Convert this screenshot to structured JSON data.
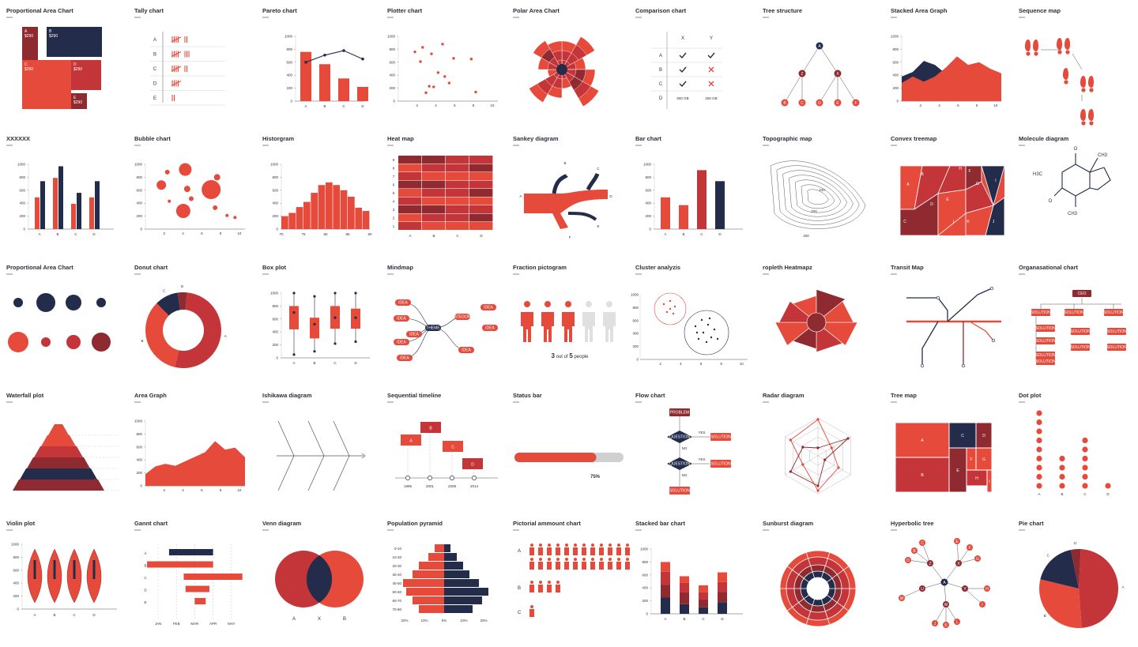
{
  "colors": {
    "red": "#e64a3b",
    "mid": "#c4353a",
    "dark": "#8e2a30",
    "navy": "#232d4b",
    "grey": "#cfd0d2",
    "axis": "#555"
  },
  "chart_data": [
    {
      "key": "proportional_area",
      "type": "treemap",
      "title": "Proportional Area Chart",
      "cells": [
        {
          "label": "A",
          "value": "$290"
        },
        {
          "label": "B",
          "value": "$290"
        },
        {
          "label": "C",
          "value": "$290"
        },
        {
          "label": "D",
          "value": "$290"
        },
        {
          "label": "E",
          "value": "$290"
        }
      ]
    },
    {
      "key": "tally",
      "type": "table",
      "title": "Tally chart",
      "categories": [
        "A",
        "B",
        "C",
        "D",
        "E"
      ],
      "values": [
        7,
        8,
        7,
        5,
        2
      ]
    },
    {
      "key": "pareto",
      "type": "bar",
      "title": "Pareto chart",
      "categories": [
        "A",
        "B",
        "C",
        "D"
      ],
      "values": [
        760,
        570,
        350,
        220
      ],
      "line": [
        600,
        710,
        780,
        650
      ],
      "yticks": [
        "1000",
        "800",
        "600",
        "400",
        "200",
        "0"
      ],
      "ylim": [
        0,
        1000
      ]
    },
    {
      "key": "plotter",
      "type": "scatter",
      "title": "Plotter chart",
      "xticks": [
        "2",
        "4",
        "6",
        "8",
        "10"
      ],
      "yticks": [
        "1000",
        "800",
        "600",
        "400",
        "200",
        "0"
      ],
      "x": [
        2.5,
        3,
        3.2,
        4,
        3.8,
        5,
        4.6,
        6,
        5.6,
        3.5,
        7.6,
        8,
        5.2,
        4.2
      ],
      "y": [
        760,
        610,
        830,
        730,
        230,
        880,
        440,
        660,
        280,
        130,
        650,
        140,
        380,
        220
      ],
      "xlim": [
        1,
        10
      ],
      "ylim": [
        0,
        1000
      ]
    },
    {
      "key": "polar_area",
      "type": "pie",
      "title": "Polar Area Chart",
      "values": [
        6,
        8,
        5,
        7,
        9,
        4,
        6,
        8,
        3,
        5,
        7,
        6
      ]
    },
    {
      "key": "comparison",
      "type": "table",
      "title": "Comparison chart",
      "columns": [
        "X",
        "Y"
      ],
      "rows": [
        "A",
        "B",
        "C",
        "D"
      ],
      "cells": [
        [
          "check",
          "check"
        ],
        [
          "check",
          "cross"
        ],
        [
          "check",
          "cross"
        ],
        [
          "500 GB",
          "250 GB"
        ]
      ]
    },
    {
      "key": "tree_structure",
      "type": "tree",
      "title": "Tree structure",
      "root": "A",
      "level1": [
        "Z",
        "X"
      ],
      "leaves": [
        "B",
        "C",
        "D",
        "E",
        "F"
      ]
    },
    {
      "key": "stacked_area",
      "type": "area",
      "title": "Stacked Area Graph",
      "x": [
        1,
        2,
        3,
        4,
        5,
        6,
        7,
        8,
        9,
        10
      ],
      "series": [
        {
          "values": [
            380,
            450,
            620,
            560,
            420,
            390,
            420,
            380,
            300,
            260
          ]
        },
        {
          "values": [
            280,
            380,
            300,
            380,
            520,
            690,
            560,
            600,
            500,
            430
          ]
        }
      ],
      "xticks": [
        "2",
        "4",
        "6",
        "8",
        "10"
      ],
      "yticks": [
        "1000",
        "800",
        "600",
        "400",
        "200",
        "0"
      ],
      "ylim": [
        0,
        1000
      ]
    },
    {
      "key": "sequence_map",
      "type": "other",
      "title": "Sequence map"
    },
    {
      "key": "xxxxxx",
      "type": "bar",
      "title": "XXXXXX",
      "categories": [
        "A",
        "B",
        "C",
        "D"
      ],
      "series": [
        {
          "values": [
            490,
            790,
            390,
            490
          ]
        },
        {
          "values": [
            740,
            970,
            560,
            740
          ]
        }
      ],
      "yticks": [
        "1000",
        "800",
        "600",
        "400",
        "200",
        "0"
      ],
      "ylim": [
        0,
        1000
      ]
    },
    {
      "key": "bubble",
      "type": "scatter",
      "title": "Bubble chart",
      "xticks": [
        "2",
        "4",
        "6",
        "8",
        "10"
      ],
      "yticks": [
        "1000",
        "800",
        "600",
        "400",
        "200",
        "0"
      ],
      "x": [
        1.6,
        2.2,
        4,
        4.2,
        3.8,
        6.6,
        7.2,
        2.4,
        4.6,
        8.2,
        9,
        7
      ],
      "y": [
        680,
        880,
        920,
        620,
        280,
        610,
        800,
        430,
        470,
        210,
        180,
        330
      ],
      "r": [
        6,
        3,
        8,
        4,
        9,
        12,
        4,
        2,
        3,
        2,
        2,
        3
      ],
      "xlim": [
        0,
        10
      ],
      "ylim": [
        0,
        1000
      ]
    },
    {
      "key": "histogram",
      "type": "bar",
      "title": "Historgram",
      "values": [
        200,
        250,
        340,
        420,
        560,
        680,
        720,
        680,
        600,
        500,
        330,
        280
      ],
      "xticks": [
        "70",
        "75",
        "80",
        "85",
        "90"
      ],
      "yticks": [
        "1000",
        "800",
        "600",
        "400",
        "200",
        "0"
      ],
      "ylim": [
        0,
        1000
      ]
    },
    {
      "key": "heat_map",
      "type": "heatmap",
      "title": "Heat map",
      "categories": [
        "A",
        "B",
        "C",
        "D"
      ],
      "rows": [
        "9",
        "8",
        "7",
        "6",
        "5",
        "4",
        "3",
        "2",
        "1"
      ]
    },
    {
      "key": "sankey",
      "type": "other",
      "title": "Sankey diagram",
      "nodes": [
        "A",
        "B",
        "C",
        "D",
        "E",
        "F"
      ]
    },
    {
      "key": "bar",
      "type": "bar",
      "title": "Bar chart",
      "categories": [
        "A",
        "B",
        "C",
        "D"
      ],
      "values": [
        490,
        370,
        910,
        740
      ],
      "yticks": [
        "1000",
        "800",
        "600",
        "400",
        "200",
        "0"
      ],
      "ylim": [
        0,
        1000
      ]
    },
    {
      "key": "topographic",
      "type": "other",
      "title": "Topographic map",
      "labels": [
        "240",
        "220",
        "200"
      ]
    },
    {
      "key": "convex_treemap",
      "type": "other",
      "title": "Convex treemap",
      "labels": [
        "A",
        "B",
        "C",
        "D",
        "E",
        "F",
        "G",
        "H",
        "I",
        "J",
        "K",
        "L"
      ]
    },
    {
      "key": "molecule",
      "type": "other",
      "title": "Molecule diagram"
    },
    {
      "key": "proportional_area_2",
      "type": "other",
      "title": "Proportional Area Chart"
    },
    {
      "key": "donut",
      "type": "pie",
      "title": "Donut chart",
      "categories": [
        "A",
        "B",
        "C",
        "D"
      ],
      "values": [
        52,
        34,
        10,
        4
      ]
    },
    {
      "key": "box_plot",
      "type": "other",
      "title": "Box plot",
      "categories": [
        "A",
        "B",
        "C",
        "D"
      ],
      "boxes": [
        {
          "min": 50,
          "q1": 440,
          "med": 700,
          "q3": 800,
          "max": 1000
        },
        {
          "min": 100,
          "q1": 300,
          "med": 520,
          "q3": 620,
          "max": 950
        },
        {
          "min": 220,
          "q1": 450,
          "med": 620,
          "q3": 800,
          "max": 1000
        },
        {
          "min": 250,
          "q1": 450,
          "med": 620,
          "q3": 760,
          "max": 1000
        }
      ],
      "yticks": [
        "1000",
        "800",
        "600",
        "400",
        "200",
        "0"
      ],
      "ylim": [
        0,
        1000
      ]
    },
    {
      "key": "mindmap",
      "type": "other",
      "title": "Mindmap",
      "nodes": [
        "THEME",
        "CATEGORY",
        "IDEA"
      ]
    },
    {
      "key": "fraction_pictogram",
      "type": "other",
      "title": "Fraction pictogram",
      "filled": 3,
      "total": 5,
      "caption": "3 out of 5 people",
      "caption_parts": [
        "3",
        " out of ",
        "5",
        " people"
      ]
    },
    {
      "key": "cluster",
      "type": "scatter",
      "title": "Cluster analyzis",
      "xticks": [
        "2",
        "4",
        "6",
        "8",
        "10"
      ],
      "yticks": [
        "1000",
        "800",
        "600",
        "400",
        "200",
        "0"
      ],
      "xlim": [
        1,
        10
      ],
      "ylim": [
        0,
        1000
      ]
    },
    {
      "key": "choropleth",
      "type": "other",
      "title": " ropleth Heatmapz"
    },
    {
      "key": "transit",
      "type": "other",
      "title": "Transit Map"
    },
    {
      "key": "organisational",
      "type": "other",
      "title": "Organasational chart",
      "root": "CEO",
      "node": "SOLUTION"
    },
    {
      "key": "waterfall",
      "type": "other",
      "title": "Waterfall plot"
    },
    {
      "key": "area_graph",
      "type": "area",
      "title": "Area Graph",
      "x": [
        0,
        1,
        2,
        3,
        4,
        5,
        6,
        7,
        8,
        9,
        10
      ],
      "values": [
        180,
        300,
        340,
        310,
        380,
        450,
        520,
        690,
        560,
        590,
        440
      ],
      "xticks": [
        "2",
        "4",
        "6",
        "8",
        "10"
      ],
      "yticks": [
        "1000",
        "800",
        "600",
        "400",
        "200",
        "0"
      ],
      "ylim": [
        0,
        1000
      ]
    },
    {
      "key": "ishikawa",
      "type": "other",
      "title": "Ishikawa diagram"
    },
    {
      "key": "sequential_timeline",
      "type": "other",
      "title": "Sequential timeline",
      "events": [
        "A",
        "B",
        "C",
        "D"
      ],
      "years": [
        "1996",
        "2001",
        "2008",
        "2014"
      ]
    },
    {
      "key": "status_bar",
      "type": "other",
      "title": "Status bar",
      "value": 0.75,
      "label": "75%"
    },
    {
      "key": "flow_chart",
      "type": "other",
      "title": "Flow chart",
      "nodes": [
        "PROBLEM",
        "QUESTION",
        "SOLUTION"
      ],
      "yes": "YES",
      "no": "NO"
    },
    {
      "key": "radar",
      "type": "other",
      "title": "Radar diagram"
    },
    {
      "key": "tree_map",
      "type": "treemap",
      "title": "Tree map",
      "labels": [
        "A",
        "B",
        "C",
        "D",
        "E",
        "F",
        "G",
        "H",
        "I"
      ]
    },
    {
      "key": "dot_plot",
      "type": "other",
      "title": "Dot plot",
      "categories": [
        "A",
        "B",
        "C",
        "D"
      ],
      "values": [
        9,
        4,
        6,
        1
      ]
    },
    {
      "key": "violin",
      "type": "other",
      "title": "Violin plot",
      "categories": [
        "A",
        "B",
        "C",
        "D"
      ],
      "yticks": [
        "1000",
        "800",
        "600",
        "400",
        "200",
        "0"
      ]
    },
    {
      "key": "gantt",
      "type": "bar",
      "title": "Gannt chart",
      "categories": [
        "A",
        "B",
        "C",
        "D",
        "E"
      ],
      "months": [
        "JAN",
        "FEB",
        "MAR",
        "APR",
        "MAY"
      ],
      "tasks": [
        {
          "start": 0.6,
          "end": 3.0
        },
        {
          "start": -0.6,
          "end": 3.0
        },
        {
          "start": 1.4,
          "end": 4.6
        },
        {
          "start": 1.5,
          "end": 2.8
        },
        {
          "start": 2.0,
          "end": 2.6
        }
      ]
    },
    {
      "key": "venn",
      "type": "other",
      "title": "Venn diagram",
      "labels": [
        "A",
        "X",
        "B"
      ]
    },
    {
      "key": "population_pyramid",
      "type": "bar",
      "title": "Population pyramid",
      "ages": [
        "0-10",
        "10-20",
        "20-30",
        "30-40",
        "40-50",
        "50-60",
        "60-70",
        "70-80"
      ],
      "left": [
        3,
        5,
        8,
        10,
        13,
        12,
        10,
        8
      ],
      "right": [
        2,
        4,
        6,
        8,
        11,
        14,
        12,
        9
      ],
      "xticks": [
        "20%",
        "10%",
        "0%",
        "10%",
        "20%"
      ]
    },
    {
      "key": "pictorial_amount",
      "type": "other",
      "title": "Pictorial ammount chart",
      "rows": [
        "A",
        "B",
        "C"
      ],
      "counts": [
        24,
        4,
        1
      ]
    },
    {
      "key": "stacked_bar",
      "type": "bar",
      "title": "Stacked bar chart",
      "categories": [
        "A",
        "B",
        "C",
        "D"
      ],
      "series": [
        {
          "values": [
            250,
            150,
            100,
            180
          ]
        },
        {
          "values": [
            200,
            180,
            120,
            160
          ]
        },
        {
          "values": [
            200,
            150,
            110,
            150
          ]
        },
        {
          "values": [
            150,
            100,
            110,
            150
          ]
        }
      ],
      "yticks": [
        "1000",
        "800",
        "600",
        "400",
        "200",
        "0"
      ],
      "ylim": [
        0,
        1000
      ]
    },
    {
      "key": "sunburst",
      "type": "other",
      "title": "Sunburst diagram"
    },
    {
      "key": "hyperbolic_tree",
      "type": "other",
      "title": "Hyperbolic tree",
      "labels": [
        "A",
        "B",
        "C",
        "D",
        "E",
        "F",
        "G",
        "H",
        "I",
        "J",
        "K",
        "L",
        "M",
        "N",
        "U",
        "W",
        "X",
        "Y",
        "Z"
      ]
    },
    {
      "key": "pie",
      "type": "pie",
      "title": "Pie chart",
      "categories": [
        "A",
        "B",
        "C",
        "D"
      ],
      "values": [
        48,
        30,
        18,
        4
      ]
    }
  ]
}
